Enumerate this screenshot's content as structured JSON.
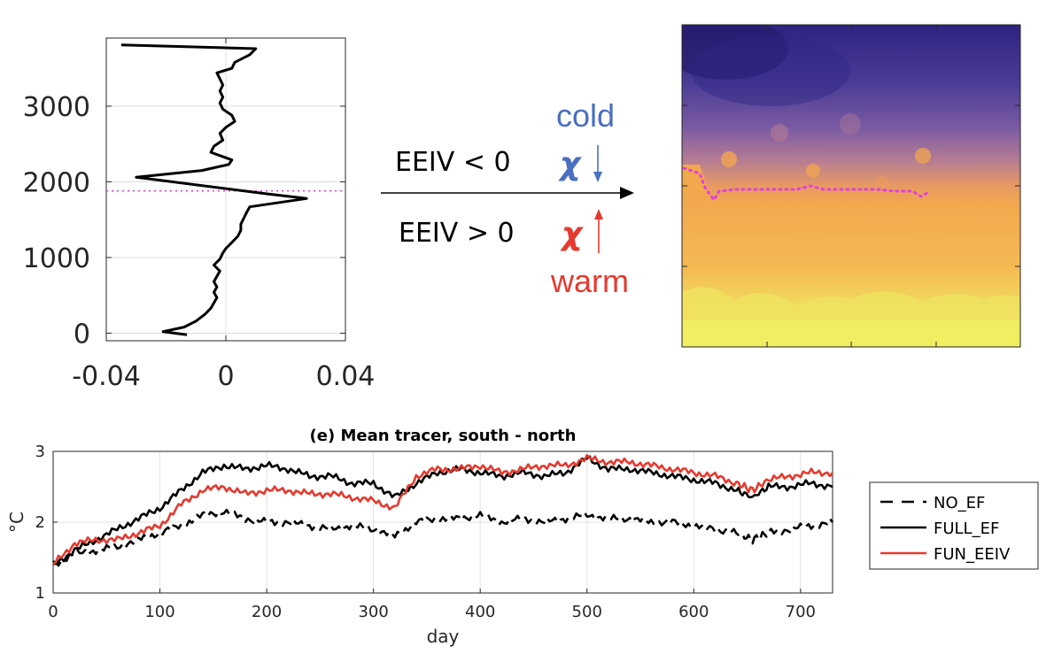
{
  "annotation": {
    "line1": "EEIV < 0",
    "line2": "EEIV > 0",
    "cold": "cold",
    "warm": "warm",
    "chi": "χ",
    "cold_color": "#4a6fc0",
    "warm_color": "#e53a2f"
  },
  "chart_data": [
    {
      "type": "line",
      "title": "",
      "xlabel": "",
      "ylabel": "",
      "xlim": [
        -0.04,
        0.04
      ],
      "ylim": [
        -100,
        3900
      ],
      "x_ticks": [
        "-0.04",
        "0",
        "0.04"
      ],
      "y_ticks": [
        "0",
        "1000",
        "2000",
        "3000"
      ],
      "grid": true,
      "reference_line": {
        "y": 1880,
        "style": "dotted",
        "color": "#e040e0"
      },
      "series": [
        {
          "color": "#000000",
          "points": [
            [
              -0.013,
              -20
            ],
            [
              -0.021,
              20
            ],
            [
              -0.014,
              80
            ],
            [
              -0.01,
              160
            ],
            [
              -0.007,
              250
            ],
            [
              -0.005,
              330
            ],
            [
              -0.004,
              400
            ],
            [
              -0.003,
              470
            ],
            [
              -0.004,
              540
            ],
            [
              -0.003,
              610
            ],
            [
              -0.004,
              680
            ],
            [
              -0.003,
              750
            ],
            [
              -0.002,
              820
            ],
            [
              -0.004,
              900
            ],
            [
              -0.002,
              980
            ],
            [
              -0.001,
              1060
            ],
            [
              0.0,
              1120
            ],
            [
              0.002,
              1200
            ],
            [
              0.004,
              1280
            ],
            [
              0.005,
              1360
            ],
            [
              0.005,
              1440
            ],
            [
              0.006,
              1520
            ],
            [
              0.007,
              1600
            ],
            [
              0.008,
              1670
            ],
            [
              0.027,
              1780
            ],
            [
              0.014,
              1840
            ],
            [
              -0.03,
              2060
            ],
            [
              -0.008,
              2150
            ],
            [
              0.001,
              2230
            ],
            [
              0.002,
              2290
            ],
            [
              -0.005,
              2390
            ],
            [
              -0.004,
              2470
            ],
            [
              -0.001,
              2550
            ],
            [
              -0.002,
              2640
            ],
            [
              0.0,
              2720
            ],
            [
              0.003,
              2800
            ],
            [
              0.002,
              2880
            ],
            [
              -0.001,
              2960
            ],
            [
              -0.002,
              3040
            ],
            [
              -0.001,
              3120
            ],
            [
              -0.002,
              3200
            ],
            [
              -0.001,
              3280
            ],
            [
              -0.002,
              3360
            ],
            [
              -0.003,
              3440
            ],
            [
              0.002,
              3500
            ],
            [
              0.003,
              3580
            ],
            [
              0.008,
              3680
            ],
            [
              0.01,
              3760
            ],
            [
              -0.035,
              3810
            ]
          ]
        }
      ]
    },
    {
      "type": "heatmap",
      "title": "",
      "colormap": [
        "#2d2380",
        "#5a4aa0",
        "#9a6ea6",
        "#d99270",
        "#f2a94e",
        "#f6cd5c",
        "#eef062"
      ],
      "grid": false,
      "reference_line": {
        "style": "dotted",
        "color": "#e040e0"
      }
    },
    {
      "type": "line",
      "title": "(e) Mean tracer, south - north",
      "xlabel": "day",
      "ylabel": "°C",
      "xlim": [
        0,
        730
      ],
      "ylim": [
        1,
        3
      ],
      "x_ticks": [
        "0",
        "100",
        "200",
        "300",
        "400",
        "500",
        "600",
        "700"
      ],
      "y_ticks": [
        "1",
        "2",
        "3"
      ],
      "grid": true,
      "legend_position": "right",
      "series": [
        {
          "name": "NO_EF",
          "color": "#000000",
          "dash": "dashed",
          "x": [
            0,
            20,
            40,
            60,
            80,
            100,
            120,
            140,
            160,
            180,
            200,
            220,
            240,
            260,
            280,
            300,
            320,
            340,
            360,
            380,
            400,
            420,
            440,
            460,
            480,
            500,
            520,
            540,
            560,
            580,
            600,
            620,
            640,
            655,
            670,
            690,
            710,
            730
          ],
          "values": [
            1.4,
            1.55,
            1.6,
            1.65,
            1.75,
            1.85,
            1.95,
            2.1,
            2.15,
            2.05,
            2.0,
            2.0,
            1.95,
            1.9,
            1.95,
            1.9,
            1.8,
            2.0,
            2.05,
            2.05,
            2.1,
            2.0,
            2.05,
            2.0,
            2.05,
            2.1,
            2.05,
            2.05,
            2.0,
            2.0,
            1.95,
            1.9,
            1.85,
            1.75,
            1.85,
            1.9,
            1.95,
            2.0
          ]
        },
        {
          "name": "FULL_EF",
          "color": "#000000",
          "dash": "solid",
          "x": [
            0,
            20,
            40,
            60,
            80,
            100,
            120,
            140,
            160,
            180,
            200,
            220,
            240,
            260,
            280,
            300,
            320,
            340,
            360,
            380,
            400,
            420,
            440,
            460,
            480,
            500,
            520,
            540,
            560,
            580,
            600,
            620,
            640,
            655,
            670,
            690,
            710,
            730
          ],
          "values": [
            1.4,
            1.6,
            1.75,
            1.9,
            2.05,
            2.2,
            2.45,
            2.7,
            2.8,
            2.75,
            2.8,
            2.75,
            2.65,
            2.65,
            2.55,
            2.55,
            2.35,
            2.55,
            2.7,
            2.75,
            2.7,
            2.65,
            2.7,
            2.65,
            2.7,
            2.9,
            2.75,
            2.75,
            2.7,
            2.65,
            2.6,
            2.55,
            2.45,
            2.35,
            2.5,
            2.5,
            2.55,
            2.5
          ]
        },
        {
          "name": "FUN_EEIV",
          "color": "#e53a2f",
          "dash": "solid",
          "x": [
            0,
            20,
            40,
            60,
            80,
            100,
            120,
            140,
            160,
            180,
            200,
            220,
            240,
            260,
            280,
            300,
            320,
            340,
            360,
            380,
            400,
            420,
            440,
            460,
            480,
            500,
            520,
            540,
            560,
            580,
            600,
            620,
            640,
            655,
            670,
            690,
            710,
            730
          ],
          "values": [
            1.4,
            1.7,
            1.75,
            1.75,
            1.85,
            1.95,
            2.25,
            2.45,
            2.5,
            2.4,
            2.45,
            2.45,
            2.4,
            2.4,
            2.35,
            2.3,
            2.2,
            2.65,
            2.75,
            2.75,
            2.8,
            2.7,
            2.75,
            2.8,
            2.8,
            2.9,
            2.85,
            2.85,
            2.8,
            2.75,
            2.7,
            2.65,
            2.55,
            2.45,
            2.6,
            2.65,
            2.7,
            2.7
          ]
        }
      ]
    }
  ]
}
